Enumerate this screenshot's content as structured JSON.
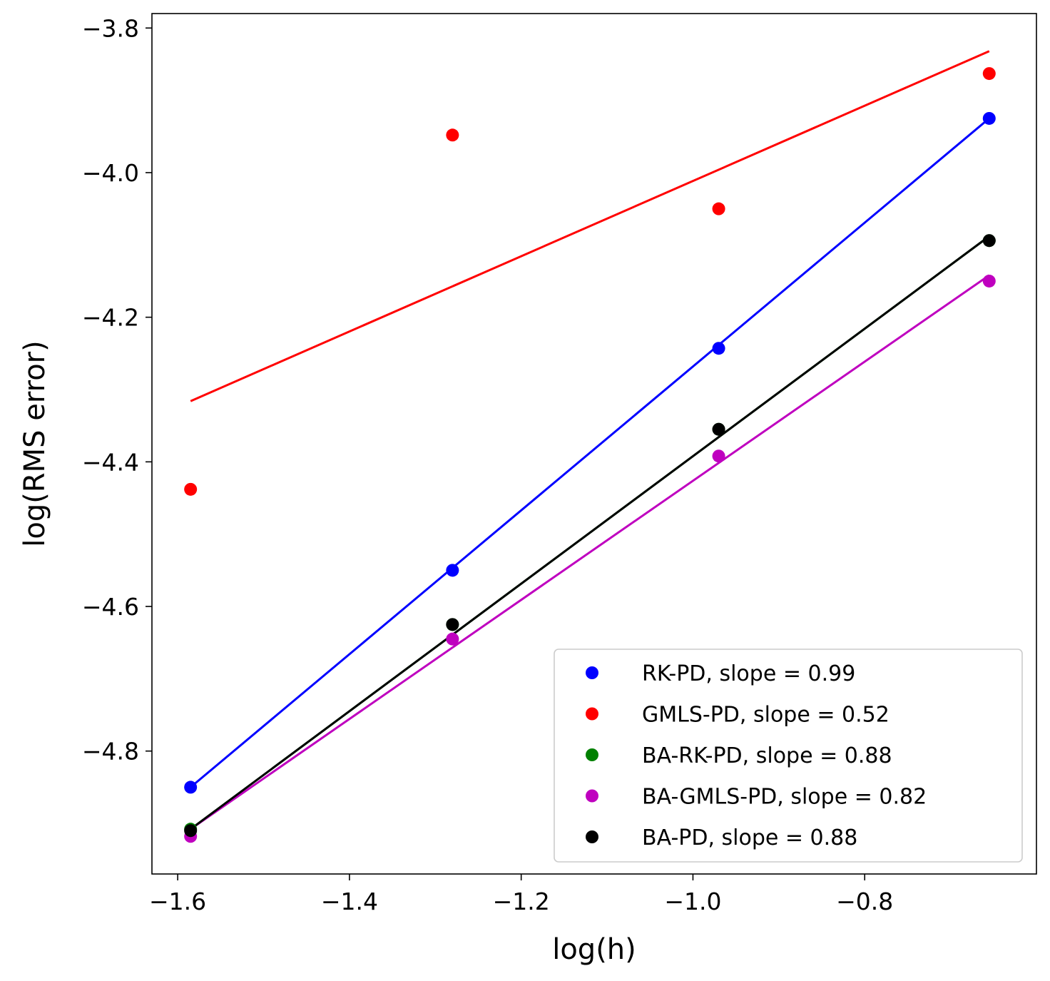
{
  "chart_data": {
    "type": "scatter",
    "xlabel": "log(h)",
    "ylabel": "log(RMS error)",
    "xlim": [
      -1.63,
      -0.6
    ],
    "ylim": [
      -4.97,
      -3.78
    ],
    "xticks": [
      -1.6,
      -1.4,
      -1.2,
      -1.0,
      -0.8
    ],
    "yticks": [
      -4.8,
      -4.6,
      -4.4,
      -4.2,
      -4.0,
      -3.8
    ],
    "xtick_labels": [
      "−1.6",
      "−1.4",
      "−1.2",
      "−1.0",
      "−0.8"
    ],
    "ytick_labels": [
      "−4.8",
      "−4.6",
      "−4.4",
      "−4.2",
      "−4.0",
      "−3.8"
    ],
    "x": [
      -1.585,
      -1.28,
      -0.97,
      -0.655
    ],
    "series": [
      {
        "name": "RK-PD, slope = 0.99",
        "color": "#0000ff",
        "values": [
          -4.85,
          -4.55,
          -4.243,
          -3.925
        ],
        "fit": [
          [
            -1.585,
            -4.85
          ],
          [
            -0.655,
            -3.925
          ]
        ]
      },
      {
        "name": "GMLS-PD, slope = 0.52",
        "color": "#ff0000",
        "values": [
          -4.438,
          -3.948,
          -4.05,
          -3.863
        ],
        "fit": [
          [
            -1.585,
            -4.316
          ],
          [
            -0.655,
            -3.832
          ]
        ]
      },
      {
        "name": "BA-RK-PD, slope = 0.88",
        "color": "#008000",
        "values": [
          -4.908,
          -4.625,
          -4.355,
          -4.094
        ],
        "fit": [
          [
            -1.585,
            -4.908
          ],
          [
            -0.655,
            -4.088
          ]
        ]
      },
      {
        "name": "BA-GMLS-PD, slope = 0.82",
        "color": "#bf00bf",
        "values": [
          -4.918,
          -4.645,
          -4.392,
          -4.15
        ],
        "fit": [
          [
            -1.585,
            -4.908
          ],
          [
            -0.655,
            -4.142
          ]
        ]
      },
      {
        "name": "BA-PD, slope = 0.88",
        "color": "#000000",
        "values": [
          -4.91,
          -4.625,
          -4.355,
          -4.094
        ],
        "fit": [
          [
            -1.585,
            -4.908
          ],
          [
            -0.655,
            -4.088
          ]
        ]
      }
    ],
    "legend_position": "lower-right"
  }
}
